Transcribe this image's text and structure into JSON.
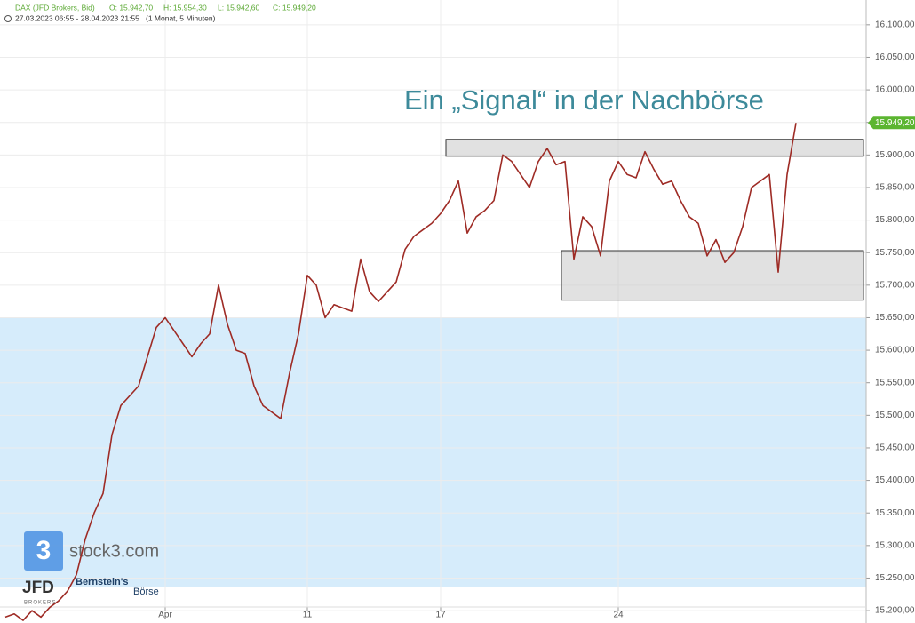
{
  "chart_data": {
    "type": "line",
    "header": {
      "instrument": "DAX (JFD Brokers, Bid)",
      "open": "O: 15.942,70",
      "high": "H: 15.954,30",
      "low": "L: 15.942,60",
      "close": "C: 15.949,20",
      "range": "27.03.2023 06:55 - 28.04.2023 21:55",
      "period": "(1 Monat, 5 Minuten)"
    },
    "annotation": "Ein „Signal“ in der Nachbörse",
    "watermarks": {
      "site": "stock3.com",
      "broker": "JFD",
      "broker_sub": "BROKERS",
      "brand": "Bernstein's",
      "brand_sub": "Börse"
    },
    "categories": [
      null,
      null,
      null,
      null,
      null,
      null,
      null,
      null,
      null,
      null,
      null,
      null,
      null,
      null,
      null,
      null,
      null,
      null,
      "Apr",
      null,
      null,
      null,
      null,
      null,
      null,
      null,
      null,
      null,
      null,
      null,
      null,
      null,
      null,
      null,
      "11",
      null,
      null,
      null,
      null,
      null,
      null,
      null,
      null,
      null,
      null,
      null,
      null,
      null,
      null,
      "17",
      null,
      null,
      null,
      null,
      null,
      null,
      null,
      null,
      null,
      null,
      null,
      null,
      null,
      null,
      null,
      null,
      null,
      null,
      null,
      "24",
      null,
      null,
      null,
      null,
      null,
      null,
      null,
      null,
      null,
      null,
      null,
      null,
      null,
      null,
      null,
      null,
      null,
      null,
      null,
      null
    ],
    "values": [
      15190,
      15195,
      15185,
      15200,
      15190,
      15205,
      15215,
      15230,
      15255,
      15310,
      15350,
      15380,
      15470,
      15515,
      15530,
      15545,
      15590,
      15635,
      15650,
      15630,
      15610,
      15590,
      15610,
      15625,
      15700,
      15640,
      15600,
      15595,
      15545,
      15515,
      15505,
      15495,
      15565,
      15625,
      15715,
      15700,
      15650,
      15670,
      15665,
      15660,
      15740,
      15690,
      15675,
      15690,
      15705,
      15755,
      15775,
      15785,
      15795,
      15810,
      15830,
      15860,
      15780,
      15805,
      15815,
      15830,
      15900,
      15890,
      15870,
      15850,
      15890,
      15910,
      15885,
      15890,
      15740,
      15805,
      15790,
      15745,
      15860,
      15890,
      15870,
      15865,
      15905,
      15878,
      15855,
      15860,
      15830,
      15805,
      15795,
      15745,
      15770,
      15735,
      15750,
      15790,
      15850,
      15860,
      15870,
      15720,
      15870,
      15949.2
    ],
    "color": "#9e2b25",
    "current_price": {
      "value": 15949.2,
      "label": "15.949,20"
    },
    "band": {
      "ylim": [
        15237,
        15650
      ],
      "color": "#d6ecfb"
    },
    "zones": [
      {
        "ylim": [
          15898,
          15924
        ],
        "start": 50
      },
      {
        "ylim": [
          15677,
          15753
        ],
        "start": 63
      }
    ],
    "ylim": [
      15181,
      16138
    ],
    "yticks": [
      {
        "value": 15200,
        "label": "15.200,00"
      },
      {
        "value": 15250,
        "label": "15.250,00"
      },
      {
        "value": 15300,
        "label": "15.300,00"
      },
      {
        "value": 15350,
        "label": "15.350,00"
      },
      {
        "value": 15400,
        "label": "15.400,00"
      },
      {
        "value": 15450,
        "label": "15.450,00"
      },
      {
        "value": 15500,
        "label": "15.500,00"
      },
      {
        "value": 15550,
        "label": "15.550,00"
      },
      {
        "value": 15600,
        "label": "15.600,00"
      },
      {
        "value": 15650,
        "label": "15.650,00"
      },
      {
        "value": 15700,
        "label": "15.700,00"
      },
      {
        "value": 15750,
        "label": "15.750,00"
      },
      {
        "value": 15800,
        "label": "15.800,00"
      },
      {
        "value": 15850,
        "label": "15.850,00"
      },
      {
        "value": 15900,
        "label": "15.900,00"
      },
      {
        "value": 15950,
        "label": "15.950,00"
      },
      {
        "value": 16000,
        "label": "16.000,00"
      },
      {
        "value": 16050,
        "label": "16.050,00"
      },
      {
        "value": 16100,
        "label": "16.100,00"
      }
    ],
    "grid": true
  }
}
